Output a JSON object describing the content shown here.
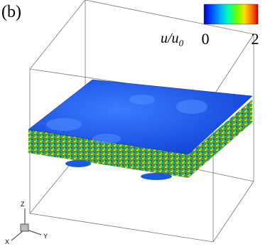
{
  "panel_label": "(b)",
  "colorbar": {
    "label": "u/u",
    "label_sub": "0",
    "ticks": [
      "0",
      "2"
    ]
  },
  "axes_triad": {
    "z": "Z",
    "x": "X",
    "y": "Y"
  }
}
